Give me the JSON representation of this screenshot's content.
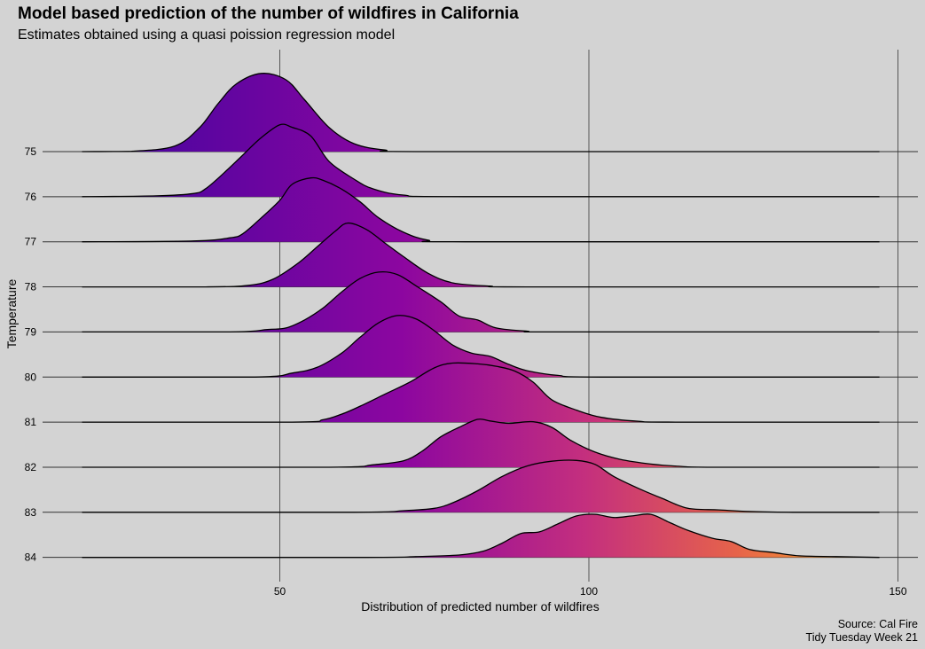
{
  "chart_data": {
    "type": "ridgeline",
    "title": "Model based prediction of the number of wildfires in California",
    "subtitle": "Estimates obtained using a quasi poission regression model",
    "xlabel": "Distribution of predicted number of wildfires",
    "ylabel": "Temperature",
    "caption_lines": [
      "Source: Cal Fire",
      "Tidy Tuesday Week 21"
    ],
    "xlim": [
      18,
      147
    ],
    "x_ticks": [
      50,
      100,
      150
    ],
    "grid": "vertical major gridlines plus a baseline per ridge",
    "fill": "gradient along x: purple (low) to magenta, orange, yellow (high)",
    "colors": {
      "background": "#d3d3d3",
      "low": "#3f04a0",
      "mid_low": "#8c06a0",
      "mid": "#c42f7e",
      "mid_high": "#e6634a",
      "high": "#fcb024"
    },
    "series": [
      {
        "name": "75",
        "density": [
          [
            18,
            0
          ],
          [
            26,
            0.004
          ],
          [
            33,
            0.07
          ],
          [
            37,
            0.3
          ],
          [
            40,
            0.6
          ],
          [
            43,
            0.85
          ],
          [
            47,
            0.98
          ],
          [
            51,
            0.9
          ],
          [
            54,
            0.65
          ],
          [
            58,
            0.3
          ],
          [
            62,
            0.1
          ],
          [
            67,
            0.02
          ],
          [
            74,
            0
          ],
          [
            147,
            0
          ]
        ]
      },
      {
        "name": "76",
        "density": [
          [
            18,
            0
          ],
          [
            30,
            0.01
          ],
          [
            36,
            0.04
          ],
          [
            38,
            0.1
          ],
          [
            41,
            0.3
          ],
          [
            44,
            0.52
          ],
          [
            47,
            0.74
          ],
          [
            50,
            0.9
          ],
          [
            52,
            0.87
          ],
          [
            55,
            0.76
          ],
          [
            58,
            0.44
          ],
          [
            62,
            0.22
          ],
          [
            65,
            0.1
          ],
          [
            70,
            0.02
          ],
          [
            80,
            0
          ],
          [
            147,
            0
          ]
        ]
      },
      {
        "name": "77",
        "density": [
          [
            18,
            0
          ],
          [
            36,
            0.01
          ],
          [
            42,
            0.05
          ],
          [
            44,
            0.1
          ],
          [
            47,
            0.3
          ],
          [
            50,
            0.52
          ],
          [
            52,
            0.72
          ],
          [
            55,
            0.8
          ],
          [
            57,
            0.77
          ],
          [
            60,
            0.66
          ],
          [
            63,
            0.5
          ],
          [
            66,
            0.3
          ],
          [
            70,
            0.12
          ],
          [
            74,
            0.02
          ],
          [
            80,
            0
          ],
          [
            147,
            0
          ]
        ]
      },
      {
        "name": "78",
        "density": [
          [
            18,
            0
          ],
          [
            38,
            0
          ],
          [
            45,
            0.02
          ],
          [
            49,
            0.1
          ],
          [
            53,
            0.3
          ],
          [
            56,
            0.5
          ],
          [
            59,
            0.7
          ],
          [
            61,
            0.8
          ],
          [
            64,
            0.72
          ],
          [
            67,
            0.55
          ],
          [
            70,
            0.38
          ],
          [
            74,
            0.17
          ],
          [
            78,
            0.05
          ],
          [
            84,
            0.01
          ],
          [
            90,
            0
          ],
          [
            147,
            0
          ]
        ]
      },
      {
        "name": "79",
        "density": [
          [
            18,
            0
          ],
          [
            42,
            0
          ],
          [
            48,
            0.03
          ],
          [
            51,
            0.05
          ],
          [
            54,
            0.15
          ],
          [
            57,
            0.3
          ],
          [
            60,
            0.5
          ],
          [
            63,
            0.67
          ],
          [
            66,
            0.75
          ],
          [
            69,
            0.72
          ],
          [
            72,
            0.58
          ],
          [
            76,
            0.38
          ],
          [
            79,
            0.2
          ],
          [
            82,
            0.15
          ],
          [
            85,
            0.05
          ],
          [
            90,
            0.01
          ],
          [
            95,
            0
          ],
          [
            147,
            0
          ]
        ]
      },
      {
        "name": "80",
        "density": [
          [
            18,
            0
          ],
          [
            46,
            0
          ],
          [
            52,
            0.05
          ],
          [
            56,
            0.12
          ],
          [
            60,
            0.3
          ],
          [
            63,
            0.5
          ],
          [
            66,
            0.68
          ],
          [
            69,
            0.77
          ],
          [
            72,
            0.73
          ],
          [
            75,
            0.58
          ],
          [
            78,
            0.4
          ],
          [
            81,
            0.3
          ],
          [
            84,
            0.26
          ],
          [
            87,
            0.16
          ],
          [
            90,
            0.08
          ],
          [
            95,
            0.02
          ],
          [
            102,
            0
          ],
          [
            147,
            0
          ]
        ]
      },
      {
        "name": "81",
        "density": [
          [
            18,
            0
          ],
          [
            52,
            0
          ],
          [
            57,
            0.03
          ],
          [
            60,
            0.1
          ],
          [
            63,
            0.2
          ],
          [
            67,
            0.35
          ],
          [
            71,
            0.5
          ],
          [
            75,
            0.68
          ],
          [
            78,
            0.74
          ],
          [
            82,
            0.73
          ],
          [
            85,
            0.7
          ],
          [
            88,
            0.64
          ],
          [
            91,
            0.5
          ],
          [
            94,
            0.28
          ],
          [
            98,
            0.15
          ],
          [
            102,
            0.06
          ],
          [
            108,
            0.01
          ],
          [
            114,
            0
          ],
          [
            147,
            0
          ]
        ]
      },
      {
        "name": "82",
        "density": [
          [
            18,
            0
          ],
          [
            58,
            0
          ],
          [
            65,
            0.03
          ],
          [
            70,
            0.08
          ],
          [
            73,
            0.2
          ],
          [
            76,
            0.38
          ],
          [
            79,
            0.5
          ],
          [
            82,
            0.6
          ],
          [
            84,
            0.58
          ],
          [
            87,
            0.55
          ],
          [
            91,
            0.57
          ],
          [
            94,
            0.5
          ],
          [
            97,
            0.34
          ],
          [
            101,
            0.19
          ],
          [
            105,
            0.1
          ],
          [
            110,
            0.04
          ],
          [
            115,
            0.01
          ],
          [
            120,
            0
          ],
          [
            147,
            0
          ]
        ]
      },
      {
        "name": "83",
        "density": [
          [
            18,
            0
          ],
          [
            62,
            0
          ],
          [
            70,
            0.02
          ],
          [
            75,
            0.05
          ],
          [
            78,
            0.12
          ],
          [
            82,
            0.27
          ],
          [
            86,
            0.45
          ],
          [
            90,
            0.58
          ],
          [
            94,
            0.64
          ],
          [
            98,
            0.65
          ],
          [
            101,
            0.6
          ],
          [
            104,
            0.45
          ],
          [
            108,
            0.3
          ],
          [
            112,
            0.17
          ],
          [
            116,
            0.05
          ],
          [
            121,
            0.03
          ],
          [
            126,
            0.01
          ],
          [
            133,
            0
          ],
          [
            147,
            0
          ]
        ]
      },
      {
        "name": "84",
        "density": [
          [
            18,
            0
          ],
          [
            64,
            0
          ],
          [
            72,
            0.01
          ],
          [
            79,
            0.03
          ],
          [
            83,
            0.08
          ],
          [
            86,
            0.18
          ],
          [
            89,
            0.3
          ],
          [
            92,
            0.32
          ],
          [
            95,
            0.42
          ],
          [
            98,
            0.52
          ],
          [
            101,
            0.54
          ],
          [
            104,
            0.5
          ],
          [
            107,
            0.52
          ],
          [
            110,
            0.54
          ],
          [
            113,
            0.44
          ],
          [
            116,
            0.34
          ],
          [
            120,
            0.24
          ],
          [
            123,
            0.2
          ],
          [
            126,
            0.1
          ],
          [
            130,
            0.06
          ],
          [
            134,
            0.02
          ],
          [
            140,
            0.01
          ],
          [
            147,
            0
          ]
        ]
      }
    ]
  }
}
